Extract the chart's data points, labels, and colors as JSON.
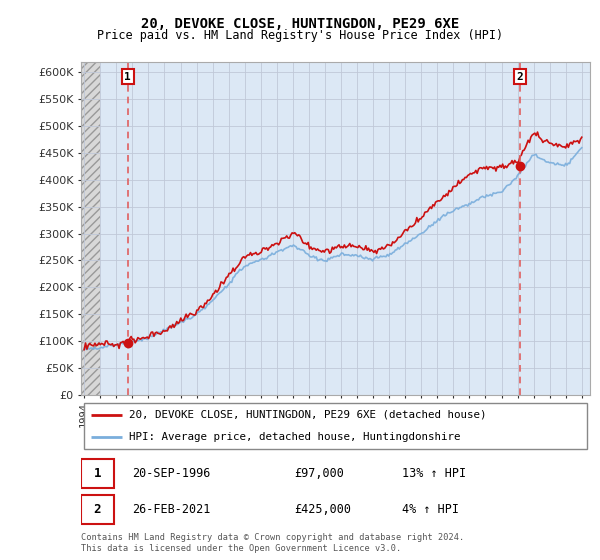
{
  "title": "20, DEVOKE CLOSE, HUNTINGDON, PE29 6XE",
  "subtitle": "Price paid vs. HM Land Registry's House Price Index (HPI)",
  "legend_line1": "20, DEVOKE CLOSE, HUNTINGDON, PE29 6XE (detached house)",
  "legend_line2": "HPI: Average price, detached house, Huntingdonshire",
  "footnote": "Contains HM Land Registry data © Crown copyright and database right 2024.\nThis data is licensed under the Open Government Licence v3.0.",
  "point1_date": "20-SEP-1996",
  "point1_price": "£97,000",
  "point1_hpi": "13% ↑ HPI",
  "point2_date": "26-FEB-2021",
  "point2_price": "£425,000",
  "point2_hpi": "4% ↑ HPI",
  "ylim": [
    0,
    620000
  ],
  "yticks": [
    0,
    50000,
    100000,
    150000,
    200000,
    250000,
    300000,
    350000,
    400000,
    450000,
    500000,
    550000,
    600000
  ],
  "hpi_color": "#7aaedc",
  "price_color": "#cc1111",
  "vline_color": "#e06060",
  "sale1_year": 1996.72,
  "sale2_year": 2021.15,
  "sale1_price": 97000,
  "sale2_price": 425000,
  "xmin": 1993.8,
  "xmax": 2025.5,
  "chart_bg": "#dce8f5",
  "hatch_bg": "#e8e8e8",
  "grid_color": "#c0c8d8"
}
